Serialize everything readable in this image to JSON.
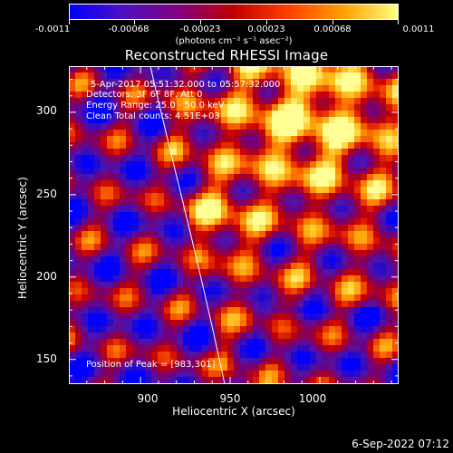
{
  "colorbar": {
    "tick_labels": [
      "-0.0011",
      "-0.00068",
      "-0.00023",
      "0.00023",
      "0.00068",
      "0.0011"
    ],
    "units": "(photons cm⁻² s⁻¹ asec⁻²)"
  },
  "title": "Reconstructed RHESSI Image",
  "annotations": {
    "time_range": "5-Apr-2017 05:51:32.000 to 05:57:32.000",
    "detectors": "Detectors: 3F 6F 8F, Att 0",
    "energy": "Energy Range: 25.0 - 50.0 keV",
    "method": "Clean     Total counts: 4.51E+03",
    "peak": "Position of Peak = [983,301]"
  },
  "axes": {
    "xlabel": "Heliocentric X (arcsec)",
    "ylabel": "Heliocentric Y (arcsec)",
    "xticks": [
      "900",
      "950",
      "1000"
    ],
    "yticks": [
      "300",
      "250",
      "200",
      "150"
    ],
    "xlim": [
      860,
      1044
    ],
    "ylim": [
      135,
      328
    ]
  },
  "datestamp": "6-Sep-2022 07:12",
  "colors": {
    "background": "#000000",
    "colormap": [
      "#0000ff",
      "#5010c0",
      "#800080",
      "#c00000",
      "#ff4000",
      "#ffa000",
      "#ffff80"
    ]
  }
}
